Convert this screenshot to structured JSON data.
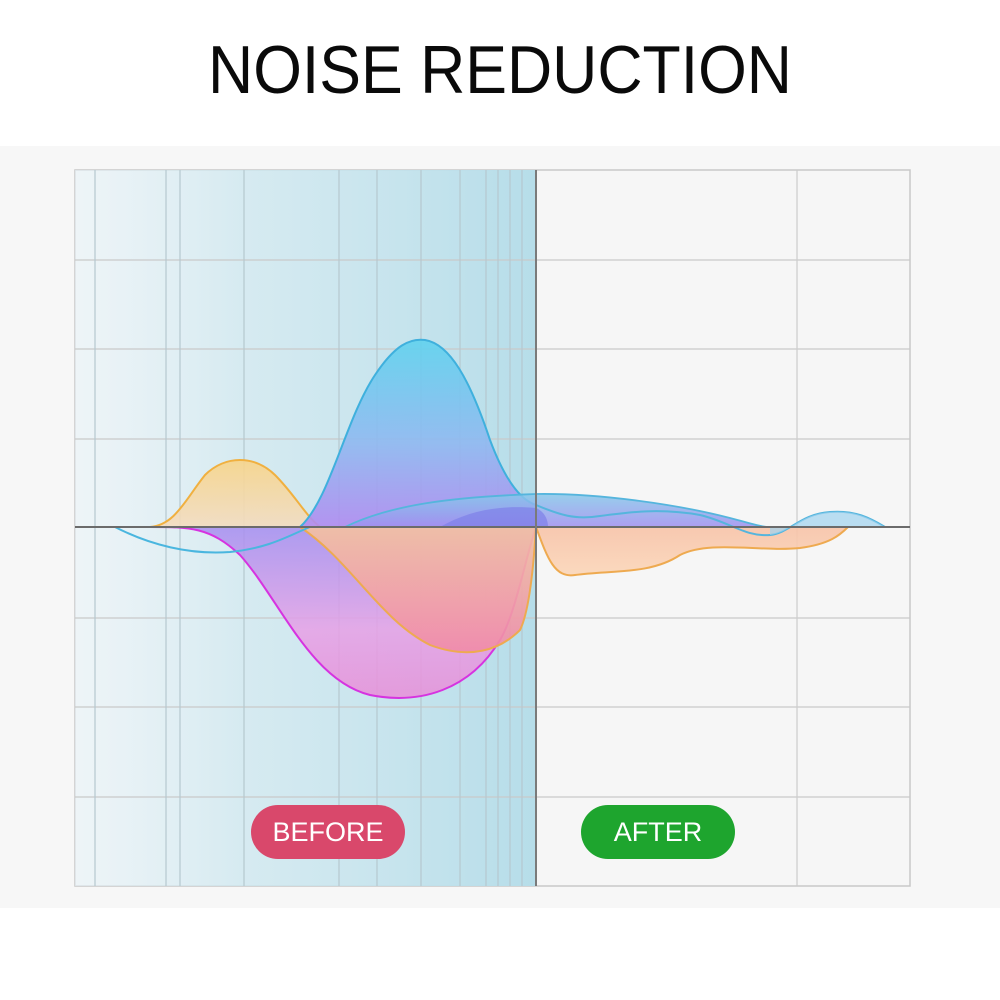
{
  "title": "NOISE REDUCTION",
  "labels": {
    "before": "BEFORE",
    "after": "AFTER"
  },
  "colors": {
    "before_badge": "#d9486b",
    "after_badge": "#1ea52e",
    "blue_wave": "#55c8e6",
    "magenta_wave": "#d633e0",
    "orange_wave": "#f0b040",
    "before_tint": "#b9dfeb"
  }
}
